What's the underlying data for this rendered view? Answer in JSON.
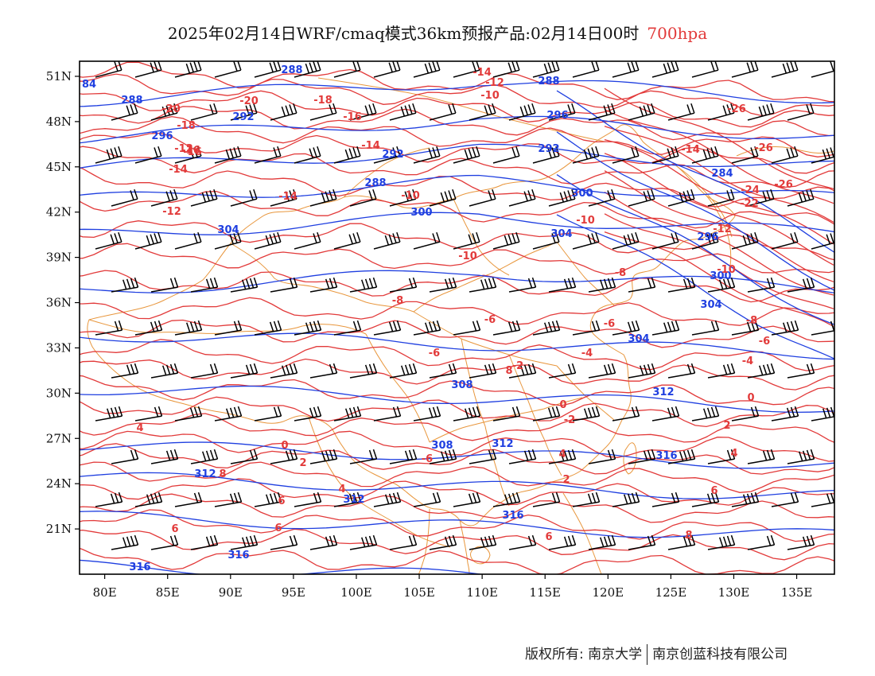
{
  "title": {
    "main": "2025年02月14日WRF/cmaq模式36km预报产品:02月14日00时",
    "level": "700hpa"
  },
  "footer": {
    "copyright": "版权所有: 南京大学",
    "company": "南京创蓝科技有限公司"
  },
  "map": {
    "lon_range": [
      78,
      138
    ],
    "lat_range": [
      18,
      52
    ],
    "lon_ticks": [
      "80E",
      "85E",
      "90E",
      "95E",
      "100E",
      "105E",
      "110E",
      "115E",
      "120E",
      "125E",
      "130E",
      "135E"
    ],
    "lat_ticks": [
      "51N",
      "48N",
      "45N",
      "42N",
      "39N",
      "36N",
      "33N",
      "30N",
      "27N",
      "24N",
      "21N"
    ],
    "colors": {
      "temperature": "#e23a3a",
      "height": "#1f3fe0",
      "borders": "#e8963c",
      "wind": "#000000"
    }
  },
  "height_labels": [
    "84",
    "288",
    "288",
    "288",
    "292",
    "296",
    "292",
    "296",
    "292",
    "288",
    "284",
    "300",
    "300",
    "304",
    "304",
    "296",
    "300",
    "304",
    "304",
    "308",
    "312",
    "308",
    "312",
    "312",
    "316",
    "316",
    "316",
    "312",
    "316"
  ],
  "temp_labels": [
    "-14",
    "-12",
    "-20",
    "-18",
    "-16",
    "-10",
    "-14",
    "-12",
    "-16",
    "-20",
    "-18",
    "-16",
    "-14",
    "-14",
    "-12",
    "-10",
    "-10",
    "-8",
    "-6",
    "-6",
    "-8",
    "-10",
    "-12",
    "-14",
    "-26",
    "-26",
    "-24",
    "-22",
    "-26",
    "-10",
    "-8",
    "-6",
    "-6",
    "-4",
    "-4",
    "-2",
    "-2",
    "-6",
    "0",
    "0",
    "2",
    "2",
    "4",
    "4",
    "4",
    "4",
    "0",
    "2",
    "6",
    "6",
    "6",
    "6",
    "6",
    "8",
    "8",
    "8"
  ]
}
